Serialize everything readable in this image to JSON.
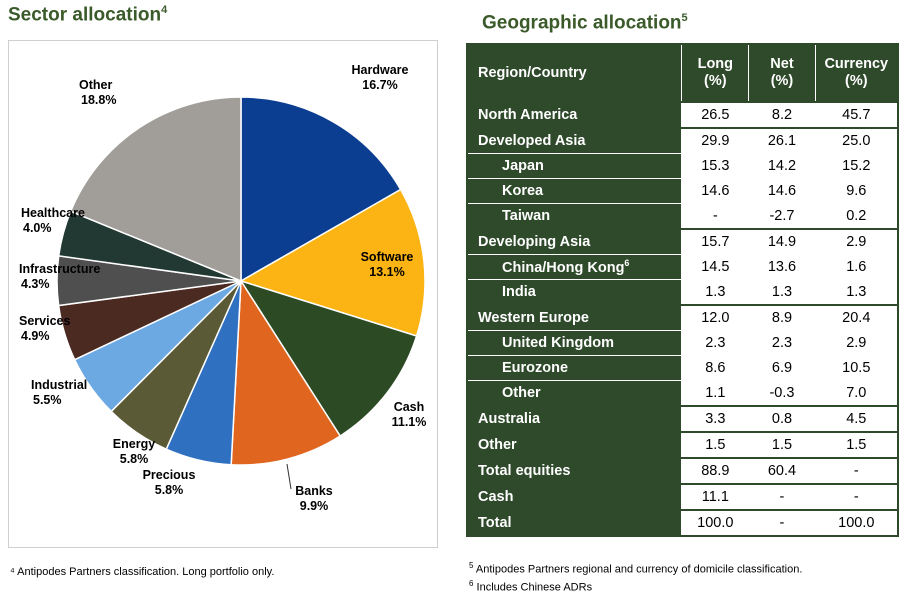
{
  "sector": {
    "title": "Sector allocation",
    "title_sup": "4",
    "footnote": "⁴ Antipodes Partners classification. Long portfolio only."
  },
  "geo": {
    "title": "Geographic allocation",
    "title_sup": "5",
    "headers": [
      "Region/Country",
      "Long\n(%)",
      "Net\n(%)",
      "Currency\n(%)"
    ],
    "rows": [
      {
        "label": "North America",
        "indent": false,
        "long": "26.5",
        "net": "8.2",
        "currency": "45.7"
      },
      {
        "label": "Developed Asia",
        "indent": false,
        "long": "29.9",
        "net": "26.1",
        "currency": "25.0"
      },
      {
        "label": "Japan",
        "indent": true,
        "long": "15.3",
        "net": "14.2",
        "currency": "15.2"
      },
      {
        "label": "Korea",
        "indent": true,
        "long": "14.6",
        "net": "14.6",
        "currency": "9.6"
      },
      {
        "label": "Taiwan",
        "indent": true,
        "long": "-",
        "net": "-2.7",
        "currency": "0.2"
      },
      {
        "label": "Developing Asia",
        "indent": false,
        "long": "15.7",
        "net": "14.9",
        "currency": "2.9"
      },
      {
        "label": "China/Hong Kong",
        "sup": "6",
        "indent": true,
        "long": "14.5",
        "net": "13.6",
        "currency": "1.6"
      },
      {
        "label": "India",
        "indent": true,
        "long": "1.3",
        "net": "1.3",
        "currency": "1.3"
      },
      {
        "label": "Western Europe",
        "indent": false,
        "long": "12.0",
        "net": "8.9",
        "currency": "20.4"
      },
      {
        "label": "United Kingdom",
        "indent": true,
        "long": "2.3",
        "net": "2.3",
        "currency": "2.9"
      },
      {
        "label": "Eurozone",
        "indent": true,
        "long": "8.6",
        "net": "6.9",
        "currency": "10.5"
      },
      {
        "label": "Other",
        "indent": true,
        "long": "1.1",
        "net": "-0.3",
        "currency": "7.0"
      },
      {
        "label": "Australia",
        "indent": false,
        "long": "3.3",
        "net": "0.8",
        "currency": "4.5"
      },
      {
        "label": "Other",
        "indent": false,
        "long": "1.5",
        "net": "1.5",
        "currency": "1.5"
      },
      {
        "label": "Total equities",
        "indent": false,
        "long": "88.9",
        "net": "60.4",
        "currency": "-"
      },
      {
        "label": "Cash",
        "indent": false,
        "long": "11.1",
        "net": "-",
        "currency": "-"
      },
      {
        "label": "Total",
        "indent": false,
        "long": "100.0",
        "net": "-",
        "currency": "100.0"
      }
    ],
    "footnotes": [
      {
        "num": "5",
        "text": "Antipodes Partners regional and currency of domicile classification."
      },
      {
        "num": "6",
        "text": "Includes Chinese ADRs"
      }
    ]
  },
  "chart_data": {
    "type": "pie",
    "title": "Sector allocation",
    "slices": [
      {
        "label": "Hardware",
        "value": 16.7,
        "display": "16.7%",
        "color": "#0b3d91"
      },
      {
        "label": "Software",
        "value": 13.1,
        "display": "13.1%",
        "color": "#fbb413"
      },
      {
        "label": "Cash",
        "value": 11.1,
        "display": "11.1%",
        "color": "#2c4a24"
      },
      {
        "label": "Banks",
        "value": 9.9,
        "display": "9.9%",
        "color": "#e0661f"
      },
      {
        "label": "Precious",
        "value": 5.8,
        "display": "5.8%",
        "color": "#2f70c0"
      },
      {
        "label": "Energy",
        "value": 5.8,
        "display": "5.8%",
        "color": "#5b5a36"
      },
      {
        "label": "Industrial",
        "value": 5.5,
        "display": "5.5%",
        "color": "#6ca9e3"
      },
      {
        "label": "Services",
        "value": 4.9,
        "display": "4.9%",
        "color": "#4b2a22"
      },
      {
        "label": "Infrastructure",
        "value": 4.3,
        "display": "4.3%",
        "color": "#4f4f4f"
      },
      {
        "label": "Healthcare",
        "value": 4.0,
        "display": "4.0%",
        "color": "#223833"
      },
      {
        "label": "Other",
        "value": 18.8,
        "display": "18.8%",
        "color": "#a19d99"
      }
    ],
    "legend": "none"
  }
}
